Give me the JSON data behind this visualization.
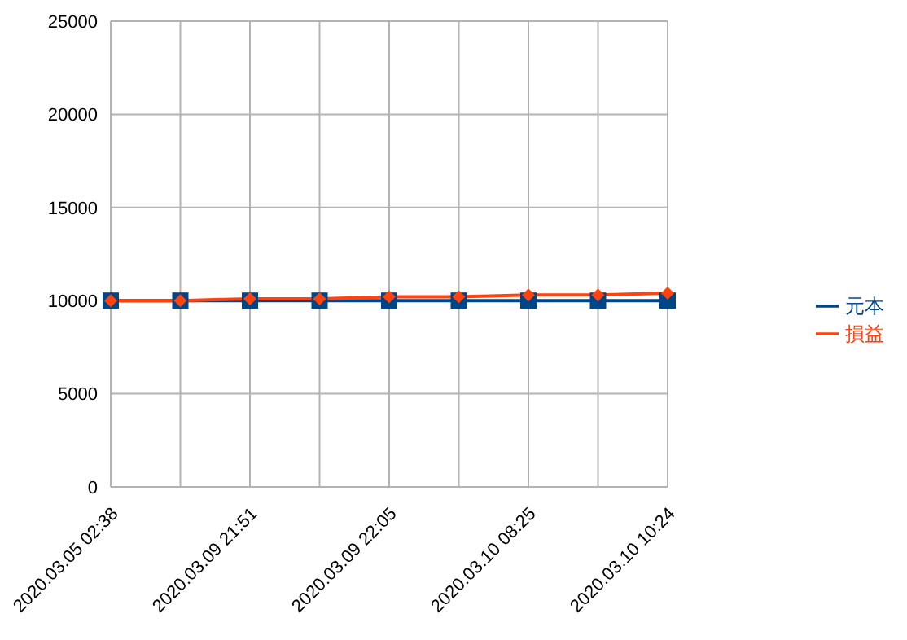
{
  "chart_data": {
    "type": "line",
    "categories": [
      "2020.03.05 02:38",
      null,
      "2020.03.09 21:51",
      null,
      "2020.03.09 22:05",
      null,
      "2020.03.10 08:25",
      null,
      "2020.03.10 10:24"
    ],
    "series": [
      {
        "name": "元本",
        "color": "#004586",
        "marker": "square",
        "values": [
          10000,
          10000,
          10000,
          10000,
          10000,
          10000,
          10000,
          10000,
          10000
        ]
      },
      {
        "name": "損益",
        "color": "#ff420e",
        "marker": "diamond",
        "values": [
          10000,
          10000,
          10100,
          10100,
          10200,
          10200,
          10300,
          10300,
          10400
        ]
      }
    ],
    "ylim": [
      0,
      25000
    ],
    "yticks": [
      0,
      5000,
      10000,
      15000,
      20000,
      25000
    ],
    "grid": true,
    "legend": "right"
  }
}
